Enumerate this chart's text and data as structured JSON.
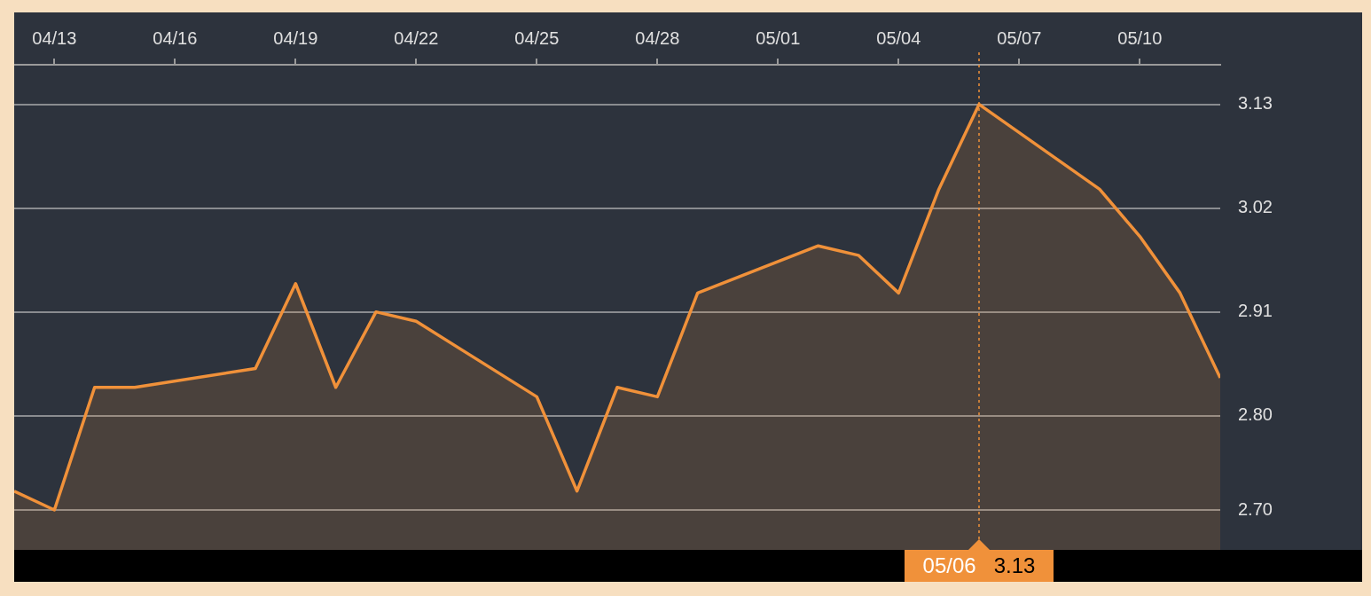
{
  "chart_data": {
    "type": "area",
    "x": [
      "--04-12",
      "--04-13",
      "--04-14",
      "--04-15",
      "--04-18",
      "--04-19",
      "--04-20",
      "--04-21",
      "--04-22",
      "--04-25",
      "--04-26",
      "--04-27",
      "--04-28",
      "--04-29",
      "--05-02",
      "--05-03",
      "--05-04",
      "--05-05",
      "--05-06",
      "--05-09",
      "--05-10",
      "--05-11",
      "--05-12"
    ],
    "series": [
      {
        "color": "#f0913a",
        "values": [
          2.72,
          2.7,
          2.83,
          2.83,
          2.85,
          2.94,
          2.83,
          2.91,
          2.9,
          2.82,
          2.72,
          2.83,
          2.82,
          2.93,
          2.98,
          2.97,
          2.93,
          3.04,
          3.13,
          3.04,
          2.99,
          2.93,
          2.84
        ]
      }
    ],
    "xlim": [
      "--04-12",
      "--05-12"
    ],
    "xticks": [
      {
        "value": "--04-13",
        "label": "04/13"
      },
      {
        "value": "--04-16",
        "label": "04/16"
      },
      {
        "value": "--04-19",
        "label": "04/19"
      },
      {
        "value": "--04-22",
        "label": "04/22"
      },
      {
        "value": "--04-25",
        "label": "04/25"
      },
      {
        "value": "--04-28",
        "label": "04/28"
      },
      {
        "value": "--05-01",
        "label": "05/01"
      },
      {
        "value": "--05-04",
        "label": "05/04"
      },
      {
        "value": "--05-07",
        "label": "05/07"
      },
      {
        "value": "--05-10",
        "label": "05/10"
      }
    ],
    "ylim": [
      2.6577,
      3.172
    ],
    "yticks": [
      {
        "value": 2.7,
        "label": "2.70"
      },
      {
        "value": 2.8,
        "label": "2.80"
      },
      {
        "value": 2.91,
        "label": "2.91"
      },
      {
        "value": 3.02,
        "label": "3.02"
      },
      {
        "value": 3.13,
        "label": "3.13"
      }
    ],
    "grid": "y",
    "marker": "none",
    "line_style": "solid",
    "ref_lines": [
      {
        "axis": "x",
        "value": "--05-06",
        "label": "05/06",
        "color": "#f0913a",
        "line_style": "dotted"
      }
    ],
    "annotations": [
      "3.13"
    ]
  }
}
